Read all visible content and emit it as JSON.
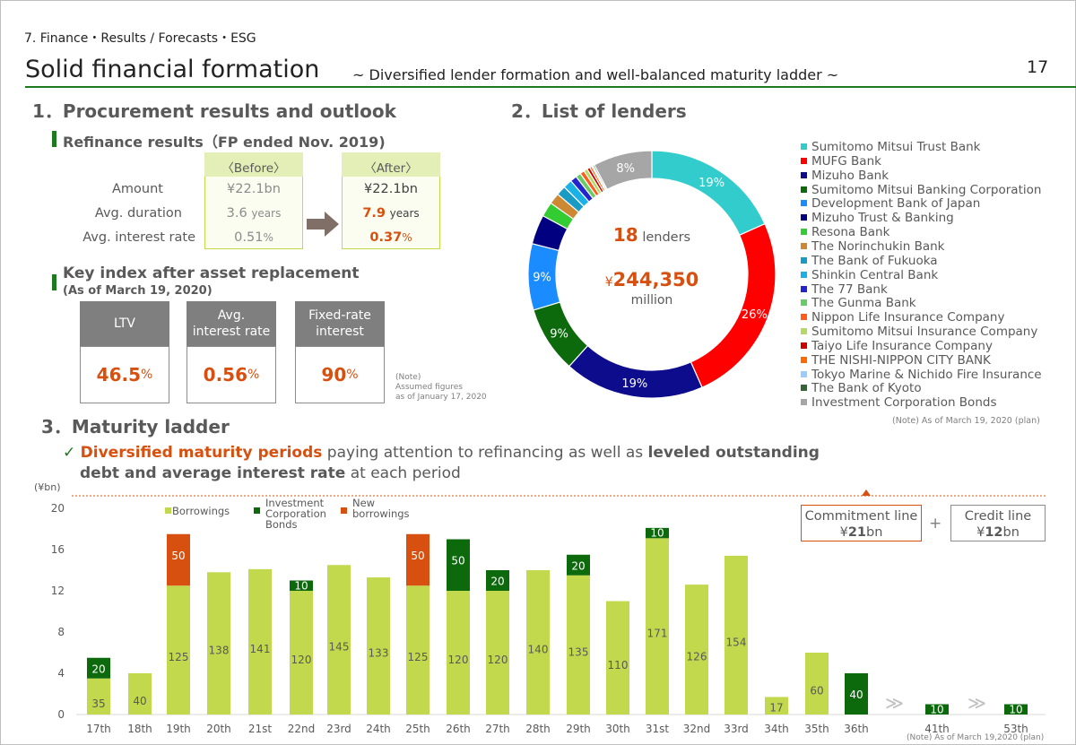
{
  "header": {
    "breadcrumb": "7. Finance・Results / Forecasts・ESG",
    "title": "Solid financial formation",
    "subtitle": "~ Diversified lender formation and well-balanced maturity ladder ~",
    "page_number": "17"
  },
  "section1": {
    "title": "1．Procurement results and outlook",
    "refinance": {
      "heading": "Refinance results（FP ended Nov. 2019)",
      "before_label": "〈Before〉",
      "after_label": "〈After〉",
      "rows": [
        {
          "label": "Amount",
          "before": "¥22.1bn",
          "before_unit": "",
          "after": "¥22.1bn",
          "after_unit": ""
        },
        {
          "label": "Avg. duration",
          "before": "3.6",
          "before_unit": "years",
          "after": "7.9",
          "after_unit": "years"
        },
        {
          "label": "Avg. interest rate",
          "before": "0.51",
          "before_unit": "%",
          "after": "0.37",
          "after_unit": "%"
        }
      ]
    },
    "key_index": {
      "heading": "Key index after asset replacement",
      "subheading": "(As of March 19, 2020)",
      "boxes": [
        {
          "label_line1": "LTV",
          "label_line2": "",
          "value": "46.5",
          "unit": "%"
        },
        {
          "label_line1": "Avg.",
          "label_line2": "interest rate",
          "value": "0.56",
          "unit": "%"
        },
        {
          "label_line1": "Fixed-rate",
          "label_line2": "interest",
          "value": "90",
          "unit": "%"
        }
      ],
      "note_line1": "(Note)",
      "note_line2": "Assumed figures",
      "note_line3": "as of January 17, 2020"
    }
  },
  "section2": {
    "title": "2．List of lenders",
    "center_count": "18",
    "center_count_label": "lenders",
    "center_amount_prefix": "¥",
    "center_amount": "244,350",
    "center_amount_unit": "million",
    "note": "(Note) As of March 19, 2020 (plan)"
  },
  "section3": {
    "title": "3．Maturity ladder",
    "check": "✓",
    "line1_highlight": "Diversified maturity periods",
    "line1_plain": " paying attention to refinancing as well as ",
    "line1_bold": "leveled outstanding",
    "line2_bold": "debt and average interest rate",
    "line2_plain": " at each period",
    "commitment_label": "Commitment line",
    "commitment_value_prefix": "¥",
    "commitment_value": "21",
    "commitment_unit": "bn",
    "plus": "+",
    "credit_label": "Credit line",
    "credit_value_prefix": "¥",
    "credit_value": "12",
    "credit_unit": "bn",
    "break_mark": "≫",
    "note": "(Note) As of March 19,2020 (plan)"
  },
  "colors": {
    "borrowings": "#c2d94e",
    "bonds": "#0c6a0c",
    "new_borrowings": "#d7500f",
    "accent_orange": "#d7500f",
    "title_green": "#1e7a1e"
  },
  "chart_data": [
    {
      "type": "pie",
      "name": "lenders-donut",
      "labels": [
        "Sumitomo Mitsui Trust Bank",
        "MUFG Bank",
        "Mizuho Bank",
        "Sumitomo Mitsui Banking Corporation",
        "Development Bank of Japan",
        "Mizuho Trust & Banking",
        "Resona Bank",
        "The Norinchukin Bank",
        "The Bank of Fukuoka",
        "Shinkin Central Bank",
        "The 77 Bank",
        "The Gunma Bank",
        "Nippon Life Insurance Company",
        "Sumitomo Mitsui Insurance Company",
        "Taiyo Life Insurance Company",
        "THE NISHI-NIPPON CITY BANK",
        "Tokyo Marine & Nichido Fire Insurance",
        "The Bank of Kyoto",
        "Investment Corporation Bonds"
      ],
      "values": [
        19,
        26,
        19,
        9,
        9,
        4,
        2,
        1.5,
        1.3,
        1.2,
        0.9,
        0.7,
        0.6,
        0.5,
        0.4,
        0.3,
        0.2,
        0.2,
        8
      ],
      "colors": [
        "#33cccc",
        "#ff0000",
        "#0c0c8c",
        "#0c6a0c",
        "#1a8cff",
        "#000080",
        "#33cc33",
        "#cc8833",
        "#1a9bc4",
        "#1ab2e6",
        "#2424cc",
        "#66cc66",
        "#ff5c1a",
        "#b3d966",
        "#cc0000",
        "#ff6a00",
        "#99ccff",
        "#336633",
        "#a6a6a6"
      ],
      "data_labels": {
        "0": "19%",
        "1": "26%",
        "2": "19%",
        "3": "9%",
        "4": "9%",
        "18": "8%"
      }
    },
    {
      "type": "bar",
      "name": "maturity-ladder",
      "ylabel": "(¥bn)",
      "ylim": [
        0,
        20
      ],
      "yticks": [
        0,
        4,
        8,
        12,
        16,
        20
      ],
      "categories": [
        "17th",
        "18th",
        "19th",
        "20th",
        "21st",
        "22nd",
        "23rd",
        "24th",
        "25th",
        "26th",
        "27th",
        "28th",
        "29th",
        "30th",
        "31st",
        "32nd",
        "33rd",
        "34th",
        "35th",
        "36th",
        "41th",
        "53th"
      ],
      "series": [
        {
          "name": "Borrowings",
          "values": [
            3.5,
            4.0,
            12.5,
            13.8,
            14.1,
            12.0,
            14.5,
            13.3,
            12.5,
            12.0,
            12.0,
            14.0,
            13.5,
            11.0,
            17.1,
            12.6,
            15.4,
            1.7,
            6.0,
            0,
            0,
            0
          ],
          "labels": [
            "35",
            "40",
            "125",
            "138",
            "141",
            "120",
            "145",
            "133",
            "125",
            "120",
            "120",
            "140",
            "135",
            "110",
            "171",
            "126",
            "154",
            "17",
            "60",
            "",
            "",
            ""
          ]
        },
        {
          "name": "Investment Corporation Bonds",
          "values": [
            2.0,
            0,
            0,
            0,
            0,
            1.0,
            0,
            0,
            0,
            5.0,
            2.0,
            0,
            2.0,
            0,
            1.0,
            0,
            0,
            0,
            0,
            4.0,
            1.0,
            1.0
          ],
          "labels": [
            "20",
            "",
            "",
            "",
            "",
            "10",
            "",
            "",
            "",
            "50",
            "20",
            "",
            "20",
            "",
            "10",
            "",
            "",
            "",
            "",
            "40",
            "10",
            "10"
          ]
        },
        {
          "name": "New borrowings",
          "values": [
            0,
            0,
            5.0,
            0,
            0,
            0,
            0,
            0,
            5.0,
            0,
            0,
            0,
            0,
            0,
            0,
            0,
            0,
            0,
            0,
            0,
            0,
            0
          ],
          "labels": [
            "",
            "",
            "50",
            "",
            "",
            "",
            "",
            "",
            "50",
            "",
            "",
            "",
            "",
            "",
            "",
            "",
            "",
            "",
            "",
            "",
            "",
            ""
          ]
        }
      ],
      "legend": [
        {
          "line1": "Borrowings",
          "line2": "",
          "line3": ""
        },
        {
          "line1": "Investment",
          "line2": "Corporation",
          "line3": "Bonds"
        },
        {
          "line1": "New",
          "line2": "borrowings",
          "line3": ""
        }
      ]
    }
  ]
}
